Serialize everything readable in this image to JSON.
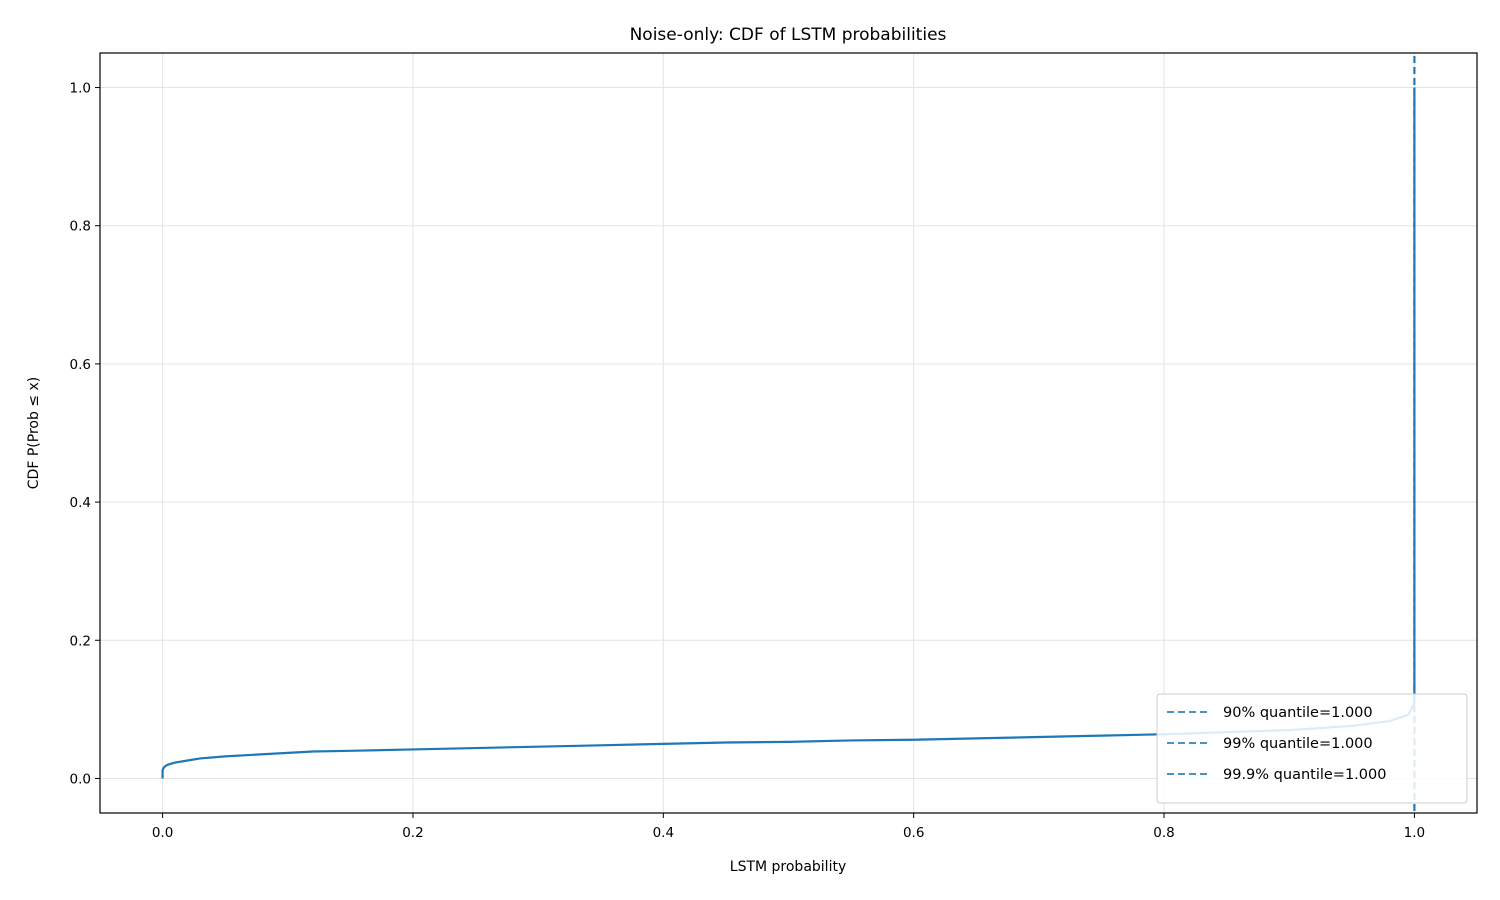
{
  "chart_data": {
    "type": "line",
    "title": "Noise-only: CDF of LSTM probabilities",
    "xlabel": "LSTM probability",
    "ylabel": "CDF  P(Prob ≤ x)",
    "xlim": [
      -0.05,
      1.05
    ],
    "ylim": [
      -0.05,
      1.05
    ],
    "xticks": [
      0.0,
      0.2,
      0.4,
      0.6,
      0.8,
      1.0
    ],
    "xtick_labels": [
      "0.0",
      "0.2",
      "0.4",
      "0.6",
      "0.8",
      "1.0"
    ],
    "yticks": [
      0.0,
      0.2,
      0.4,
      0.6,
      0.8,
      1.0
    ],
    "ytick_labels": [
      "0.0",
      "0.2",
      "0.4",
      "0.6",
      "0.8",
      "1.0"
    ],
    "grid": true,
    "legend_position": "lower right",
    "series": [
      {
        "color": "#1f77b4",
        "x": [
          0.0,
          0.0,
          0.001,
          0.003,
          0.006,
          0.01,
          0.02,
          0.03,
          0.05,
          0.08,
          0.1,
          0.12,
          0.15,
          0.2,
          0.25,
          0.3,
          0.35,
          0.4,
          0.45,
          0.5,
          0.55,
          0.6,
          0.65,
          0.7,
          0.75,
          0.8,
          0.85,
          0.9,
          0.95,
          0.98,
          0.995,
          0.999,
          1.0,
          1.0
        ],
        "y": [
          0.0,
          0.012,
          0.016,
          0.019,
          0.021,
          0.023,
          0.026,
          0.029,
          0.032,
          0.035,
          0.037,
          0.039,
          0.04,
          0.042,
          0.044,
          0.046,
          0.048,
          0.05,
          0.052,
          0.053,
          0.055,
          0.056,
          0.058,
          0.06,
          0.062,
          0.064,
          0.067,
          0.07,
          0.076,
          0.083,
          0.092,
          0.105,
          0.11,
          1.0
        ]
      }
    ],
    "quantile_lines": [
      {
        "label": "90% quantile=1.000",
        "x": 1.0,
        "color": "#1f77b4"
      },
      {
        "label": "99% quantile=1.000",
        "x": 1.0,
        "color": "#1f77b4"
      },
      {
        "label": "99.9% quantile=1.000",
        "x": 1.0,
        "color": "#1f77b4"
      }
    ]
  }
}
